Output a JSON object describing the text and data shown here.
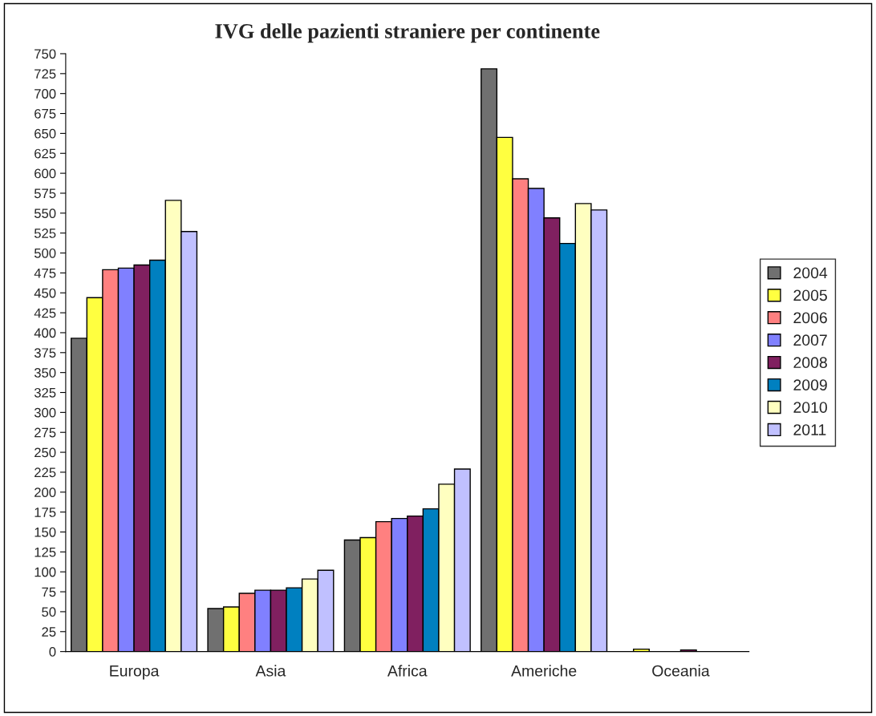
{
  "chart_data": {
    "type": "bar",
    "title": "IVG delle pazienti straniere per continente",
    "categories": [
      "Europa",
      "Asia",
      "Africa",
      "Americhe",
      "Oceania"
    ],
    "series": [
      {
        "name": "2004",
        "color": "#707070",
        "values": [
          393,
          54,
          140,
          731,
          null
        ]
      },
      {
        "name": "2005",
        "color": "#ffff40",
        "values": [
          444,
          56,
          143,
          645,
          3
        ]
      },
      {
        "name": "2006",
        "color": "#ff8080",
        "values": [
          479,
          73,
          163,
          593,
          null
        ]
      },
      {
        "name": "2007",
        "color": "#8080ff",
        "values": [
          481,
          77,
          167,
          581,
          null
        ]
      },
      {
        "name": "2008",
        "color": "#802060",
        "values": [
          485,
          77,
          170,
          544,
          2
        ]
      },
      {
        "name": "2009",
        "color": "#0080c0",
        "values": [
          491,
          80,
          179,
          512,
          null
        ]
      },
      {
        "name": "2010",
        "color": "#ffffc0",
        "values": [
          566,
          91,
          210,
          562,
          null
        ]
      },
      {
        "name": "2011",
        "color": "#c0c0ff",
        "values": [
          527,
          102,
          229,
          554,
          null
        ]
      }
    ],
    "ylim": [
      0,
      750
    ],
    "yticks": [
      0,
      25,
      50,
      75,
      100,
      125,
      150,
      175,
      200,
      225,
      250,
      275,
      300,
      325,
      350,
      375,
      400,
      425,
      450,
      475,
      500,
      525,
      550,
      575,
      600,
      625,
      650,
      675,
      700,
      725,
      750
    ],
    "grid": false,
    "legend": "right"
  }
}
